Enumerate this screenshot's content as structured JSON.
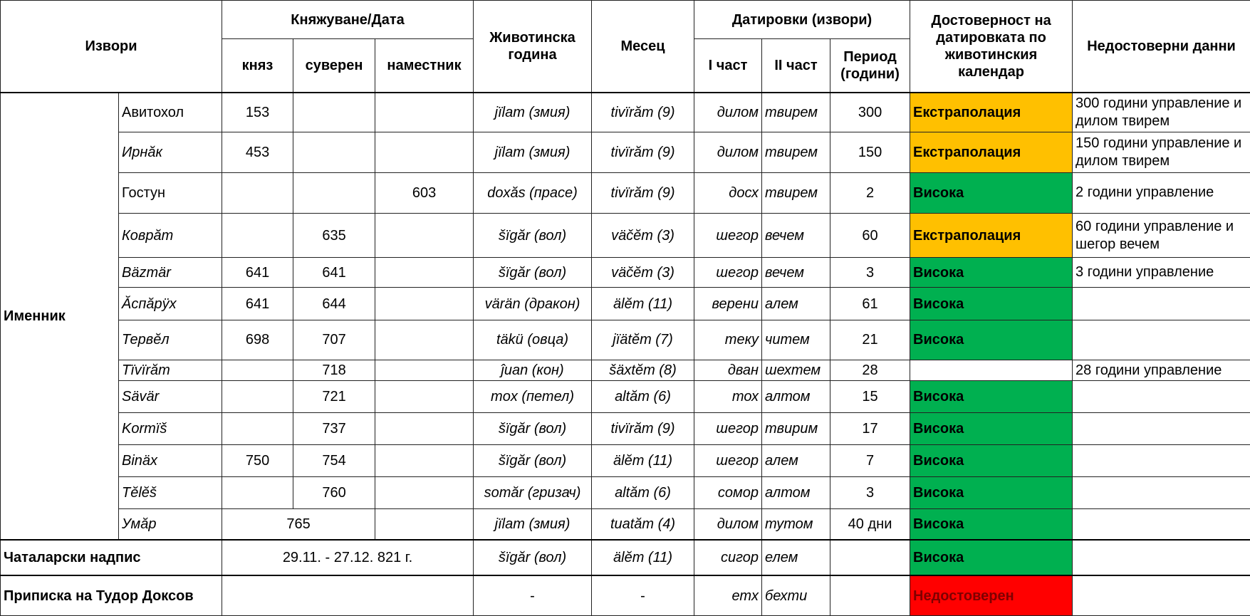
{
  "colors": {
    "extrapolation": "#FFC000",
    "high": "#00B050",
    "unreliable": "#FF0000",
    "unreliable_text": "#7F0000"
  },
  "header": {
    "sources": "Извори",
    "reign_date": "Княжуване/Дата",
    "prince": "княз",
    "sovereign": "суверен",
    "regent": "наместник",
    "animal_year": "Животинска година",
    "month": "Месец",
    "datings": "Датировки (извори)",
    "part1": "I част",
    "part2": "II част",
    "period": "Период (години)",
    "reliability": "Достоверност на датировката по животинския календар",
    "unreliable_data": "Недостоверни данни"
  },
  "group_label": "Именник",
  "rows": [
    {
      "name": "Авитохол",
      "prince": "153",
      "sovereign": "",
      "regent": "",
      "animal": "jïlam (змия)",
      "month": "tivïrăm (9)",
      "p1": "дилом",
      "p2": "твирем",
      "period": "300",
      "rel": "Екстраполация",
      "relc": "extrapolation",
      "note": "300 години управление и дилом твирем"
    },
    {
      "name": "Ирнăк",
      "prince": "453",
      "sovereign": "",
      "regent": "",
      "animal": "jïlam (змия)",
      "month": "tivïrăm (9)",
      "p1": "дилом",
      "p2": "твирем",
      "period": "150",
      "rel": "Екстраполация",
      "relc": "extrapolation",
      "note": "150 години управление и дилом твирем"
    },
    {
      "name": "Гостун",
      "prince": "",
      "sovereign": "",
      "regent": "603",
      "animal": "doxăs (прасе)",
      "month": "tivïrăm (9)",
      "p1": "досх",
      "p2": "твирем",
      "period": "2",
      "rel": "Висока",
      "relc": "high",
      "note": "2 години управление"
    },
    {
      "name": "Коврăт",
      "prince": "",
      "sovereign": "635",
      "regent": "",
      "animal": "šïgăr (вол)",
      "month": "väčĕm (3)",
      "p1": "шегор",
      "p2": "вечем",
      "period": "60",
      "rel": "Екстраполация",
      "relc": "extrapolation",
      "note": "60 години управление и шегор вечем"
    },
    {
      "name": "Bäzmär",
      "prince": "641",
      "sovereign": "641",
      "regent": "",
      "animal": "šïgăr (вол)",
      "month": "väčĕm (3)",
      "p1": "шегор",
      "p2": "вечем",
      "period": "3",
      "rel": "Висока",
      "relc": "high",
      "note": "3 години управление"
    },
    {
      "name": "Ăспăрÿх",
      "prince": "641",
      "sovereign": "644",
      "regent": "",
      "animal": "värän (дракон)",
      "month": "älĕm (11)",
      "p1": "верени",
      "p2": "алем",
      "period": "61",
      "rel": "Висока",
      "relc": "high",
      "note": ""
    },
    {
      "name": "Тервĕл",
      "prince": "698",
      "sovereign": "707",
      "regent": "",
      "animal": "täkü (овца)",
      "month": "jïätĕm (7)",
      "p1": "теку",
      "p2": "читем",
      "period": "21",
      "rel": "Висока",
      "relc": "high",
      "note": ""
    },
    {
      "name": "Tïvïrăm",
      "prince": "",
      "sovereign": "718",
      "regent": "",
      "animal": "ĵuan (кон)",
      "month": "šäxtĕm (8)",
      "p1": "дван",
      "p2": "шехтем",
      "period": "28",
      "rel": "",
      "relc": "",
      "note": "28 години управление"
    },
    {
      "name": "Sävär",
      "prince": "",
      "sovereign": "721",
      "regent": "",
      "animal": "mox (петел)",
      "month": "altăm (6)",
      "p1": "тох",
      "p2": "алтом",
      "period": "15",
      "rel": "Висока",
      "relc": "high",
      "note": ""
    },
    {
      "name": "Kormïš",
      "prince": "",
      "sovereign": "737",
      "regent": "",
      "animal": "šïgăr (вол)",
      "month": "tivïrăm (9)",
      "p1": "шегор",
      "p2": "твирим",
      "period": "17",
      "rel": "Висока",
      "relc": "high",
      "note": ""
    },
    {
      "name": "Binäx",
      "prince": "750",
      "sovereign": "754",
      "regent": "",
      "animal": "šïgăr (вол)",
      "month": "älĕm (11)",
      "p1": "шегор",
      "p2": "алем",
      "period": "7",
      "rel": "Висока",
      "relc": "high",
      "note": ""
    },
    {
      "name": "Tĕlĕš",
      "prince": "",
      "sovereign": "760",
      "regent": "",
      "animal": "somăr (гризач)",
      "month": "altăm (6)",
      "p1": "сомор",
      "p2": "алтом",
      "period": "3",
      "rel": "Висока",
      "relc": "high",
      "note": ""
    },
    {
      "name": "Умăр",
      "prince": "765",
      "sovereign": "",
      "regent": "",
      "animal": "jïlam (змия)",
      "month": "tuatăm (4)",
      "p1": "дилом",
      "p2": "тутом",
      "period": "40 дни",
      "rel": "Висока",
      "relc": "high",
      "note": ""
    }
  ],
  "chatalar": {
    "label": "Чаталарски надпис",
    "date": "29.11. - 27.12.  821 г.",
    "animal": "šïgăr (вол)",
    "month": "älĕm (11)",
    "p1": "сигор",
    "p2": "елем",
    "period": "",
    "rel": "Висока",
    "note": ""
  },
  "todor": {
    "label": "Приписка на Тудор Доксов",
    "date": "",
    "animal": "-",
    "month": "-",
    "p1": "етх",
    "p2": "бехти",
    "period": "",
    "rel": "Недостоверен",
    "note": ""
  }
}
